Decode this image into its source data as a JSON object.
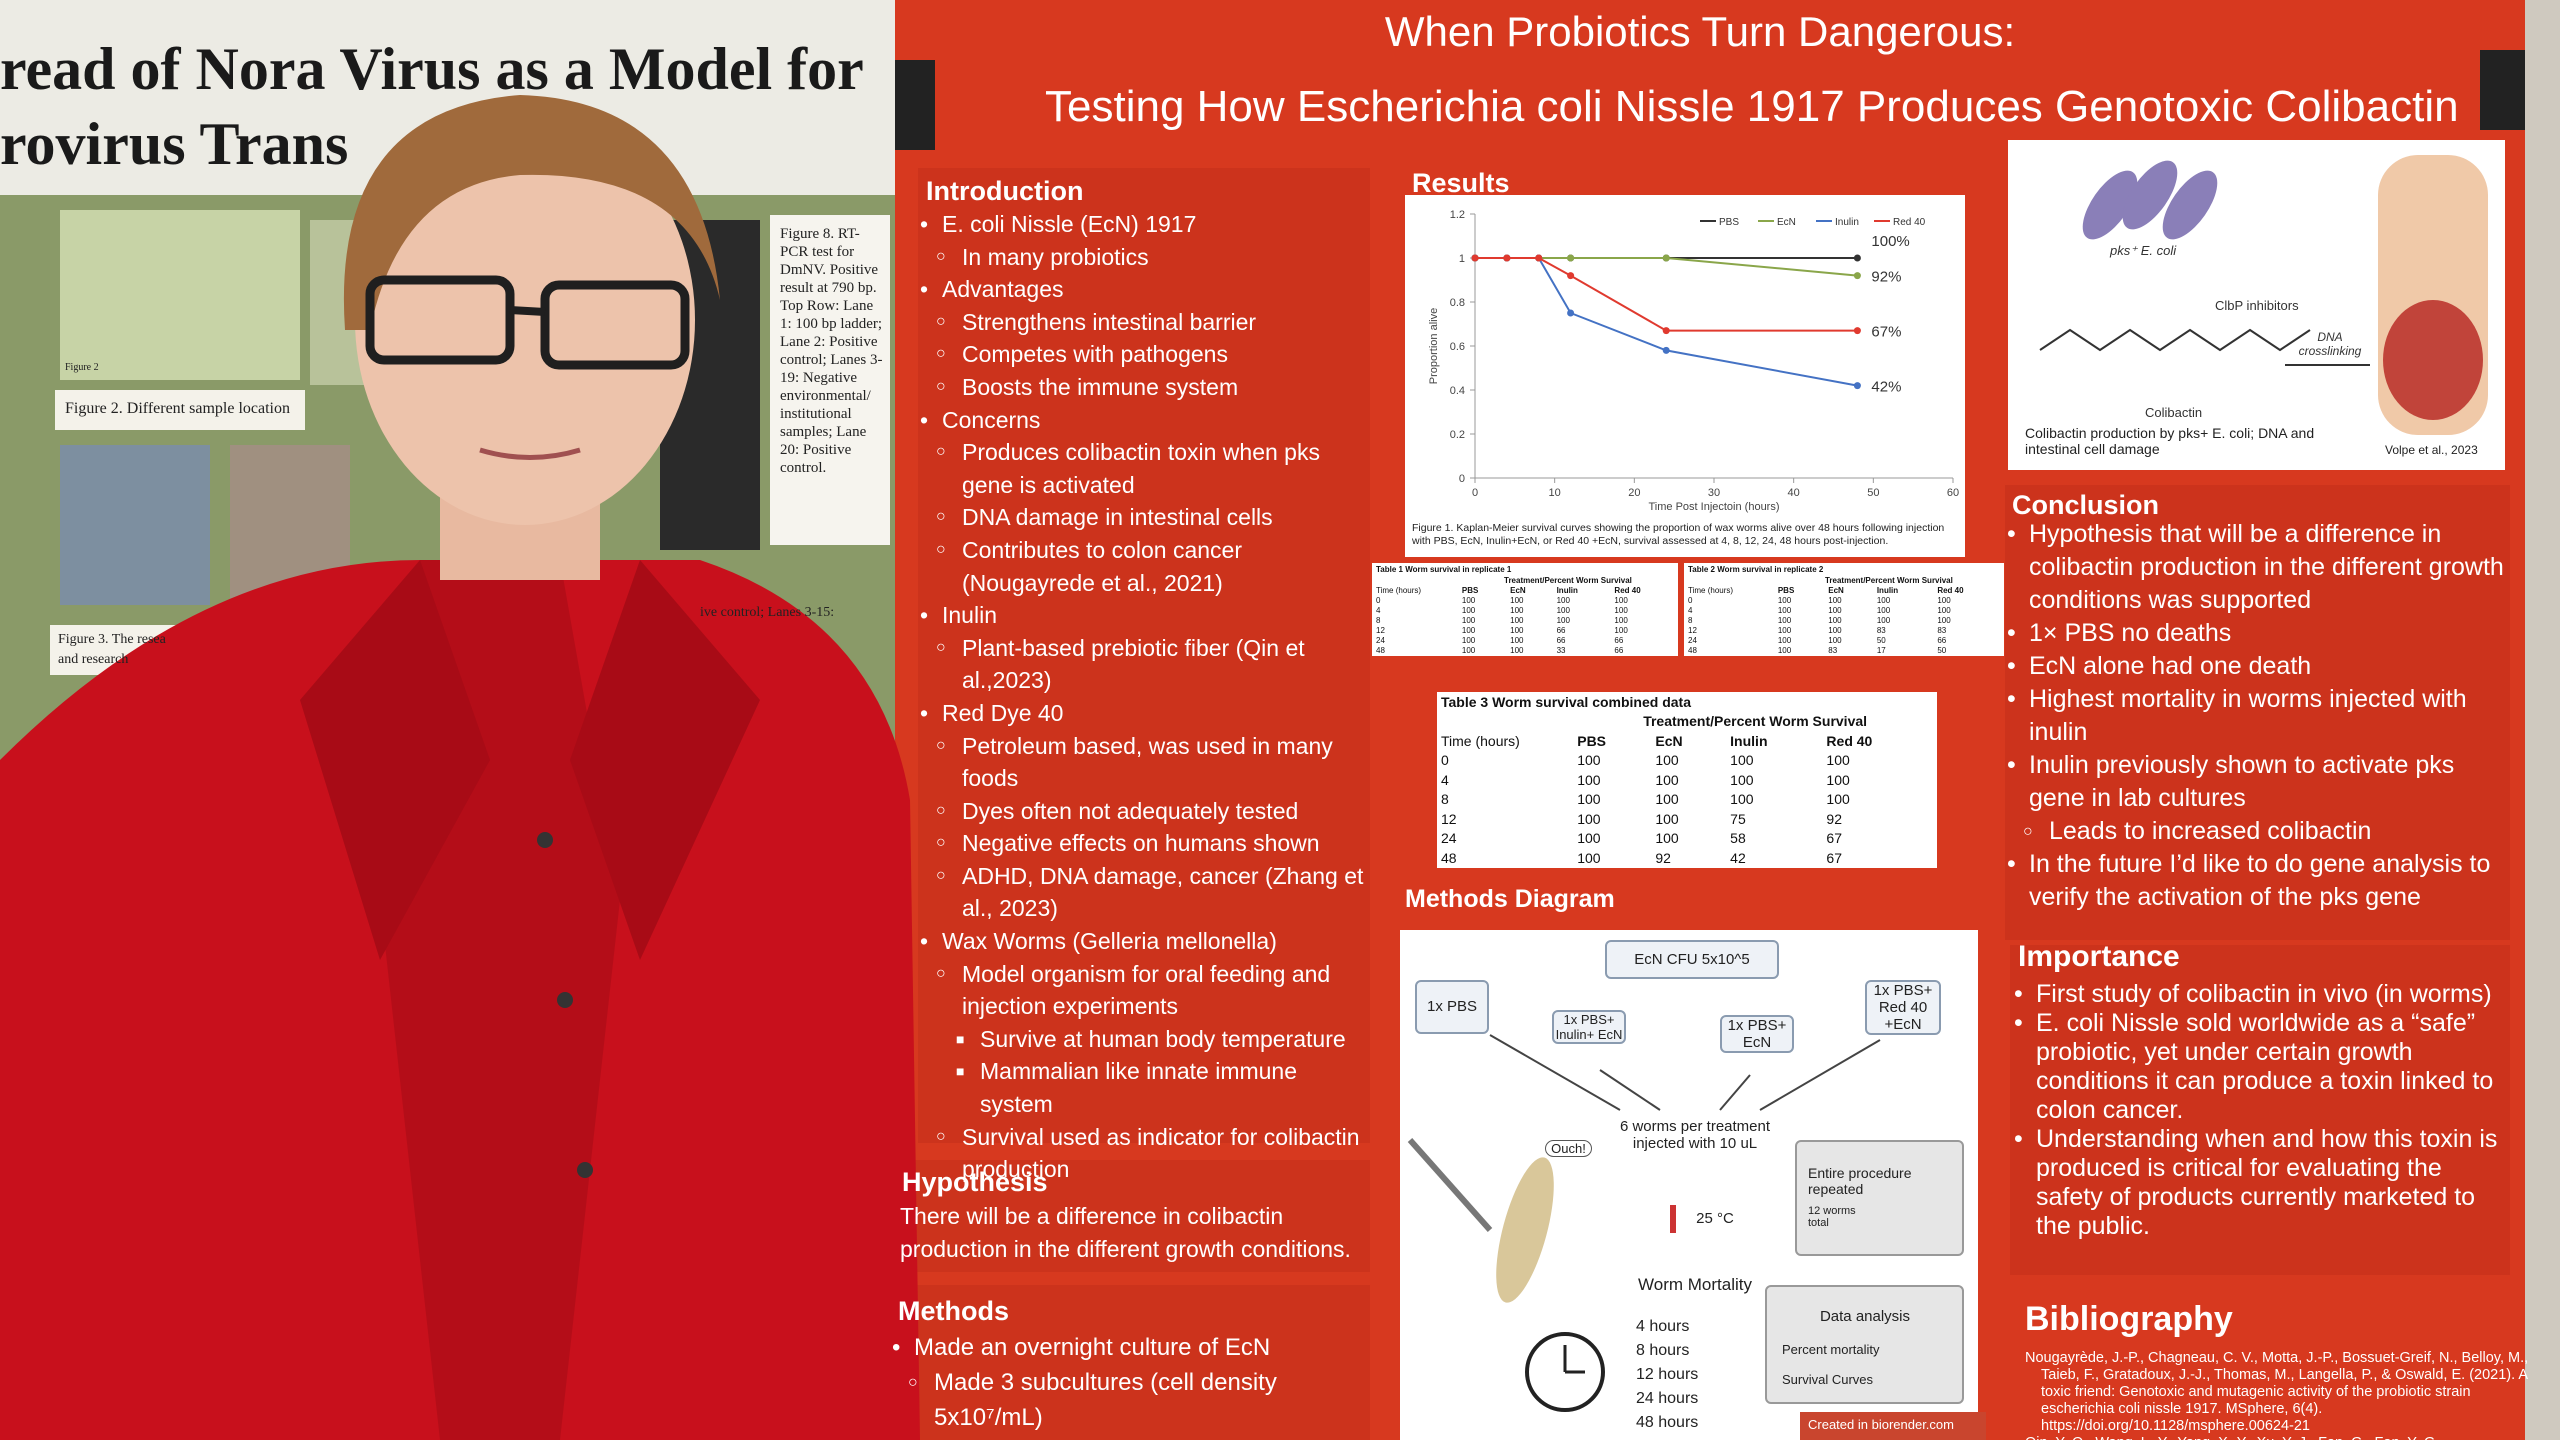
{
  "left_poster": {
    "title_lines": [
      "read of Nora Virus as a Model for",
      "rovirus Trans"
    ],
    "figure8_caption": "Figure 8. RT-PCR test for DmNV. Positive result at 790 bp. Top Row: Lane 1: 100 bp ladder; Lane 2: Positive control; Lanes 3-19: Negative environmental/ institutional samples; Lane 20: Positive control.",
    "figure2_label": "Figure 2",
    "figure2_caption": "Figure 2. Different sample location",
    "figure3_caption": "Figure 3. The resea",
    "figure3_caption_2": "and research",
    "side_caption": "ive control; Lanes 3-15:"
  },
  "poster": {
    "title": "When Probiotics Turn Dangerous:",
    "subtitle": "Testing How Escherichia coli Nissle 1917 Produces Genotoxic Colibactin",
    "introduction": {
      "heading": "Introduction",
      "items": [
        {
          "text": "E. coli Nissle (EcN) 1917",
          "sub": [
            {
              "text": "In many probiotics"
            }
          ]
        },
        {
          "text": "Advantages",
          "sub": [
            {
              "text": "Strengthens intestinal barrier"
            },
            {
              "text": "Competes with pathogens"
            },
            {
              "text": "Boosts the immune system"
            }
          ]
        },
        {
          "text": "Concerns",
          "sub": [
            {
              "text": "Produces colibactin toxin when pks gene is activated"
            },
            {
              "text": "DNA damage in intestinal cells"
            },
            {
              "text": "Contributes to colon cancer (Nougayrede et al., 2021)"
            }
          ]
        },
        {
          "text": "Inulin",
          "sub": [
            {
              "text": "Plant-based prebiotic fiber (Qin et al.,2023)"
            }
          ]
        },
        {
          "text": "Red Dye 40",
          "sub": [
            {
              "text": "Petroleum based, was used in many foods"
            },
            {
              "text": "Dyes often not adequately tested"
            },
            {
              "text": "Negative effects on humans shown"
            },
            {
              "text": "ADHD, DNA damage, cancer (Zhang et al., 2023)"
            }
          ]
        },
        {
          "text": "Wax Worms (Gelleria mellonella)",
          "sub": [
            {
              "text": "Model organism for oral feeding and injection experiments",
              "sub": [
                {
                  "text": "Survive at human body temperature"
                },
                {
                  "text": "Mammalian like innate immune system"
                }
              ]
            },
            {
              "text": "Survival used as indicator for colibactin production"
            }
          ]
        }
      ]
    },
    "hypothesis": {
      "heading": "Hypothesis",
      "text": "There will be a difference in colibactin production in the different growth conditions."
    },
    "methods": {
      "heading": "Methods",
      "items": [
        {
          "text": "Made an overnight culture of EcN",
          "sub": [
            {
              "text": "Made 3 subcultures (cell density 5x10⁷/mL)"
            }
          ]
        }
      ]
    },
    "results": {
      "heading": "Results",
      "chart": {
        "type": "line",
        "x": [
          0,
          4,
          8,
          12,
          24,
          48
        ],
        "xlim": [
          0,
          60
        ],
        "xticks": [
          0,
          10,
          20,
          30,
          40,
          50,
          60
        ],
        "ylim": [
          0,
          1.2
        ],
        "yticks": [
          0,
          0.2,
          0.4,
          0.6,
          0.8,
          1,
          1.2
        ],
        "xlabel": "Time Post Injectoin (hours)",
        "ylabel": "Proportion alive",
        "series": [
          {
            "name": "PBS",
            "color": "#333333",
            "values": [
              1,
              1,
              1,
              1,
              1,
              1
            ],
            "value_labels": [
              null,
              null,
              null,
              null,
              null,
              "100%"
            ]
          },
          {
            "name": "EcN",
            "color": "#8aa64a",
            "values": [
              1,
              1,
              1,
              1,
              1,
              0.92
            ],
            "value_labels": [
              null,
              null,
              null,
              null,
              null,
              "92%"
            ]
          },
          {
            "name": "Inulin",
            "color": "#4472c4",
            "values": [
              1,
              1,
              1,
              0.75,
              0.58,
              0.42
            ],
            "value_labels": [
              null,
              null,
              null,
              null,
              null,
              "42%"
            ]
          },
          {
            "name": "Red 40",
            "color": "#e03a2f",
            "values": [
              1,
              1,
              1,
              0.92,
              0.67,
              0.67
            ],
            "value_labels": [
              null,
              null,
              null,
              null,
              null,
              "67%"
            ]
          }
        ]
      },
      "caption": "Figure 1. Kaplan-Meier survival curves showing the proportion of wax worms alive over 48 hours following injection with PBS, EcN, Inulin+EcN, or Red 40 +EcN, survival assessed at 4, 8, 12, 24, 48 hours post-injection.",
      "tables": [
        {
          "title": "Table 1 Worm survival in replicate 1",
          "group_header": "Treatment/Percent Worm Survival",
          "columns": [
            "Time (hours)",
            "PBS",
            "EcN",
            "Inulin",
            "Red 40"
          ],
          "rows": [
            [
              0,
              100,
              100,
              100,
              100
            ],
            [
              4,
              100,
              100,
              100,
              100
            ],
            [
              8,
              100,
              100,
              100,
              100
            ],
            [
              12,
              100,
              100,
              66,
              100
            ],
            [
              24,
              100,
              100,
              66,
              66
            ],
            [
              48,
              100,
              100,
              33,
              66
            ]
          ]
        },
        {
          "title": "Table 2 Worm survival in replicate 2",
          "group_header": "Treatment/Percent Worm Survival",
          "columns": [
            "Time (hours)",
            "PBS",
            "EcN",
            "Inulin",
            "Red 40"
          ],
          "rows": [
            [
              0,
              100,
              100,
              100,
              100
            ],
            [
              4,
              100,
              100,
              100,
              100
            ],
            [
              8,
              100,
              100,
              100,
              100
            ],
            [
              12,
              100,
              100,
              83,
              83
            ],
            [
              24,
              100,
              100,
              50,
              66
            ],
            [
              48,
              100,
              83,
              17,
              50
            ]
          ]
        },
        {
          "title": "Table 3 Worm survival combined data",
          "group_header": "Treatment/Percent Worm Survival",
          "columns": [
            "Time (hours)",
            "PBS",
            "EcN",
            "Inulin",
            "Red 40"
          ],
          "rows": [
            [
              0,
              100,
              100,
              100,
              100
            ],
            [
              4,
              100,
              100,
              100,
              100
            ],
            [
              8,
              100,
              100,
              100,
              100
            ],
            [
              12,
              100,
              100,
              75,
              92
            ],
            [
              24,
              100,
              100,
              58,
              67
            ],
            [
              48,
              100,
              92,
              42,
              67
            ]
          ]
        }
      ]
    },
    "methods_diagram": {
      "heading": "Methods Diagram",
      "culture": "EcN CFU 5x10^5",
      "groups": [
        "1x PBS",
        "1x PBS+ Inulin+ EcN",
        "1x PBS+ EcN",
        "1x PBS+ Red 40 +EcN"
      ],
      "worms": "6 worms per treatment injected with 10 uL",
      "ouch": "Ouch!",
      "temperature": "25 °C",
      "mortality": "Worm Mortality",
      "times": [
        "4 hours",
        "8 hours",
        "12 hours",
        "24 hours",
        "48 hours"
      ],
      "repeat": "Entire procedure repeated",
      "total": "12 worms total",
      "analysis": {
        "title": "Data analysis",
        "items": [
          "Percent mortality",
          "Survival Curves"
        ]
      },
      "credit": "Created in biorender.com"
    },
    "figure": {
      "strain": "pks⁺ E. coli",
      "inhibitors": "ClbP inhibitors",
      "molecule": "Colibactin",
      "crosslinking": "DNA crosslinking",
      "caption": "Colibactin production by pks+ E. coli; DNA and intestinal cell damage",
      "credit": "Volpe et al., 2023"
    },
    "conclusion": {
      "heading": "Conclusion",
      "items": [
        {
          "text": "Hypothesis that will be a difference in colibactin production in the different growth conditions was supported"
        },
        {
          "text": "1× PBS no deaths"
        },
        {
          "text": "EcN alone had one death"
        },
        {
          "text": "Highest mortality in worms injected with inulin"
        },
        {
          "text": "Inulin previously shown to activate pks gene in lab cultures",
          "sub": [
            {
              "text": "Leads to increased colibactin"
            }
          ]
        },
        {
          "text": "In the future I’d like to do gene analysis to verify the activation of the pks gene"
        }
      ]
    },
    "importance": {
      "heading": "Importance",
      "items": [
        {
          "text": "First study of colibactin in vivo (in worms)"
        },
        {
          "text": "E. coli Nissle sold worldwide as a “safe” probiotic, yet under certain growth conditions it can produce a toxin linked to colon cancer."
        },
        {
          "text": "Understanding when and how this toxin is produced is critical for evaluating the safety of products currently marketed to the public."
        }
      ]
    },
    "bibliography": {
      "heading": "Bibliography",
      "entries": [
        "Nougayrède, J.-P., Chagneau, C. V., Motta, J.-P., Bossuet-Greif, N., Belloy, M., Taieb, F., Gratadoux, J.-J., Thomas, M., Langella, P., & Oswald, E. (2021). A toxic friend: Genotoxic and mutagenic activity of the probiotic strain escherichia coli nissle 1917. MSphere, 6(4). https://doi.org/10.1128/msphere.00624-21",
        "Qin, Y.-Q., Wang, L.-Y., Yang, X.-Y., Xu, Y.-J., Fan, G., Fan, Y.-G."
      ]
    }
  }
}
